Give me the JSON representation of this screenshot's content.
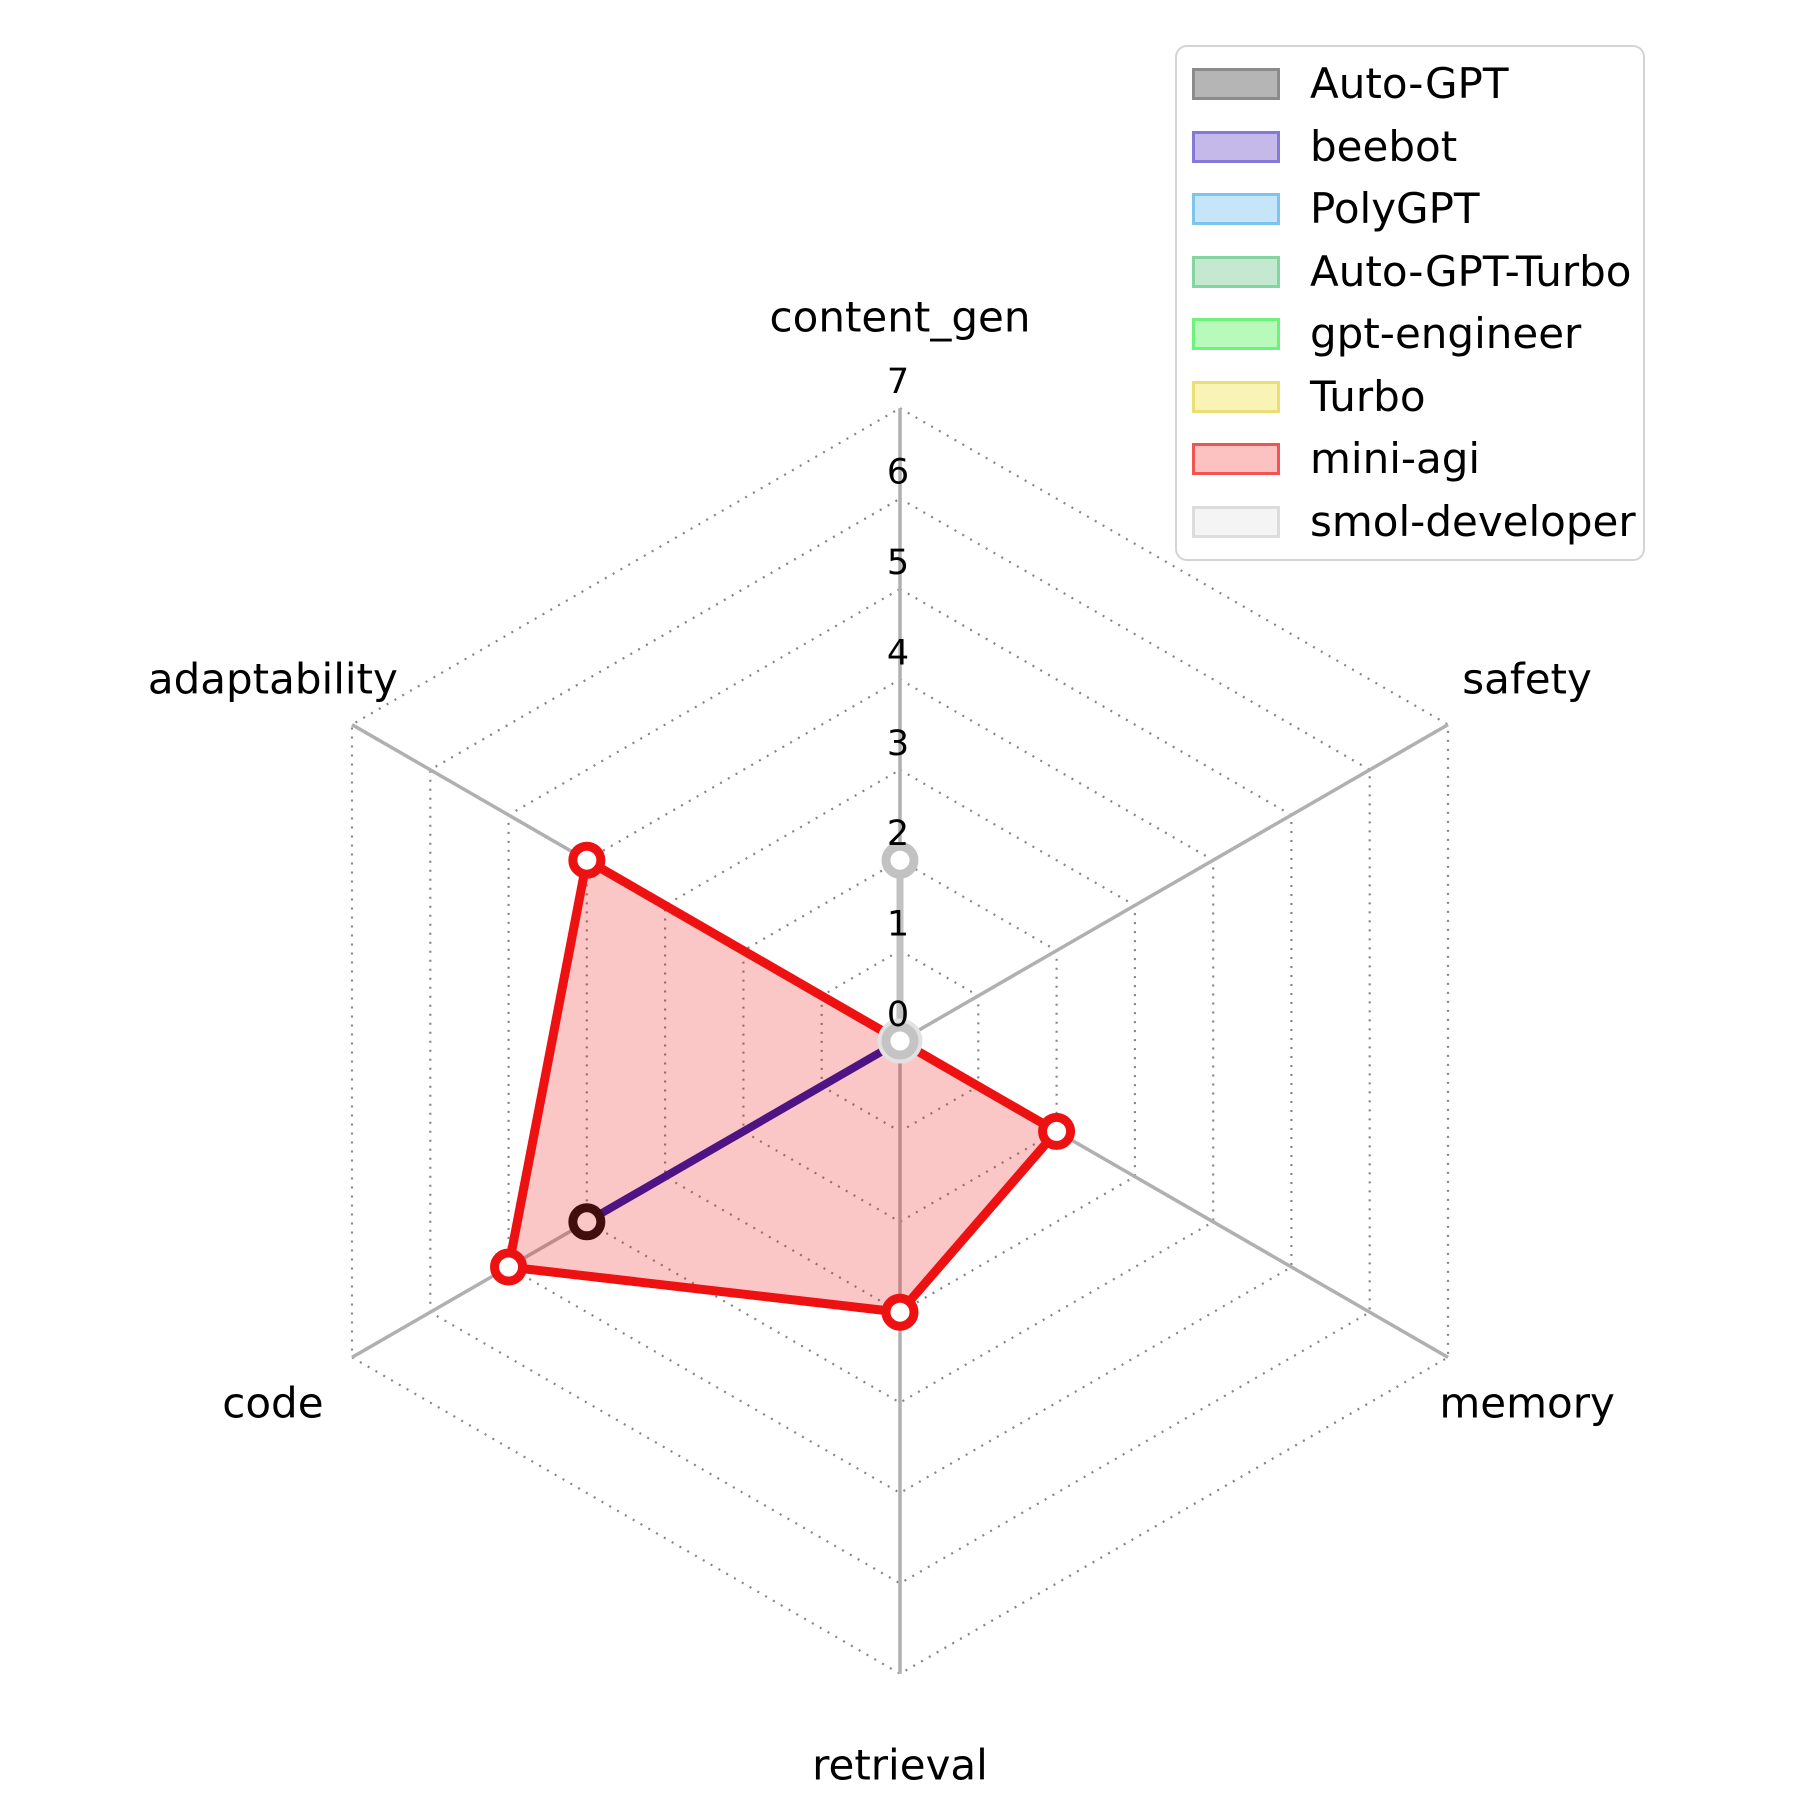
{
  "figure": {
    "background": "#ffffff"
  },
  "chart_data": {
    "type": "radar",
    "title": "",
    "axes": [
      "content_gen",
      "safety",
      "memory",
      "retrieval",
      "code",
      "adaptability"
    ],
    "r_ticks": [
      0,
      1,
      2,
      3,
      4,
      5,
      6,
      7
    ],
    "r_max": 7,
    "grid": "dotted-polygon-rings",
    "legend_position": "upper-right",
    "style": {
      "grid_color": "#858585",
      "spoke_color": "#b0b0b0",
      "text_color": "#000000",
      "center_marker_ring": "#c4c4c4",
      "center_marker_halo": "#e2e2e2"
    },
    "series": [
      {
        "name": "Auto-GPT",
        "values": [
          2,
          0,
          0,
          0,
          0,
          0
        ],
        "line_color": "#c2c2c2",
        "marker_edge": "#c2c2c2",
        "line_width": 7,
        "fill": false,
        "legend_fill": "#b5b5b5",
        "legend_edge": "#8b8b8b"
      },
      {
        "name": "beebot",
        "values": [
          0,
          0,
          0,
          0,
          4,
          0
        ],
        "line_color": "#1c16a8",
        "marker_edge": "#0d0d0d",
        "line_width": 8,
        "fill": false,
        "legend_fill": "#c5b9e9",
        "legend_edge": "#8478d8"
      },
      {
        "name": "PolyGPT",
        "values": [
          0,
          0,
          0,
          0,
          0,
          0
        ],
        "line_color": "#7dc4ef",
        "marker_edge": "#7dc4ef",
        "line_width": 7,
        "fill": false,
        "legend_fill": "#c7e5f8",
        "legend_edge": "#7dc4ef"
      },
      {
        "name": "Auto-GPT-Turbo",
        "values": [
          0,
          0,
          0,
          0,
          0,
          0
        ],
        "line_color": "#84d5a0",
        "marker_edge": "#84d5a0",
        "line_width": 7,
        "fill": false,
        "legend_fill": "#c4e8d0",
        "legend_edge": "#84d5a0"
      },
      {
        "name": "gpt-engineer",
        "values": [
          0,
          0,
          0,
          0,
          0,
          0
        ],
        "line_color": "#6ef27b",
        "marker_edge": "#6ef27b",
        "line_width": 7,
        "fill": false,
        "legend_fill": "#b8fab9",
        "legend_edge": "#6ef27b"
      },
      {
        "name": "Turbo",
        "values": [
          0,
          0,
          0,
          0,
          0,
          0
        ],
        "line_color": "#eadf74",
        "marker_edge": "#eadf74",
        "line_width": 7,
        "fill": false,
        "legend_fill": "#f9f4b6",
        "legend_edge": "#eadf74"
      },
      {
        "name": "mini-agi",
        "values": [
          0,
          0,
          2,
          3,
          5,
          4
        ],
        "line_color": "#ee1111",
        "marker_edge": "#ee1111",
        "line_width": 9,
        "fill": true,
        "fill_color": "rgba(238,17,17,0.24)",
        "legend_fill": "#fcc2c2",
        "legend_edge": "#f25454"
      },
      {
        "name": "smol-developer",
        "values": [
          0,
          0,
          0,
          0,
          0,
          0
        ],
        "line_color": "#e9e9e9",
        "marker_edge": "#e9e9e9",
        "line_width": 7,
        "fill": false,
        "legend_fill": "#f4f4f4",
        "legend_edge": "#dcdcdc"
      }
    ]
  }
}
